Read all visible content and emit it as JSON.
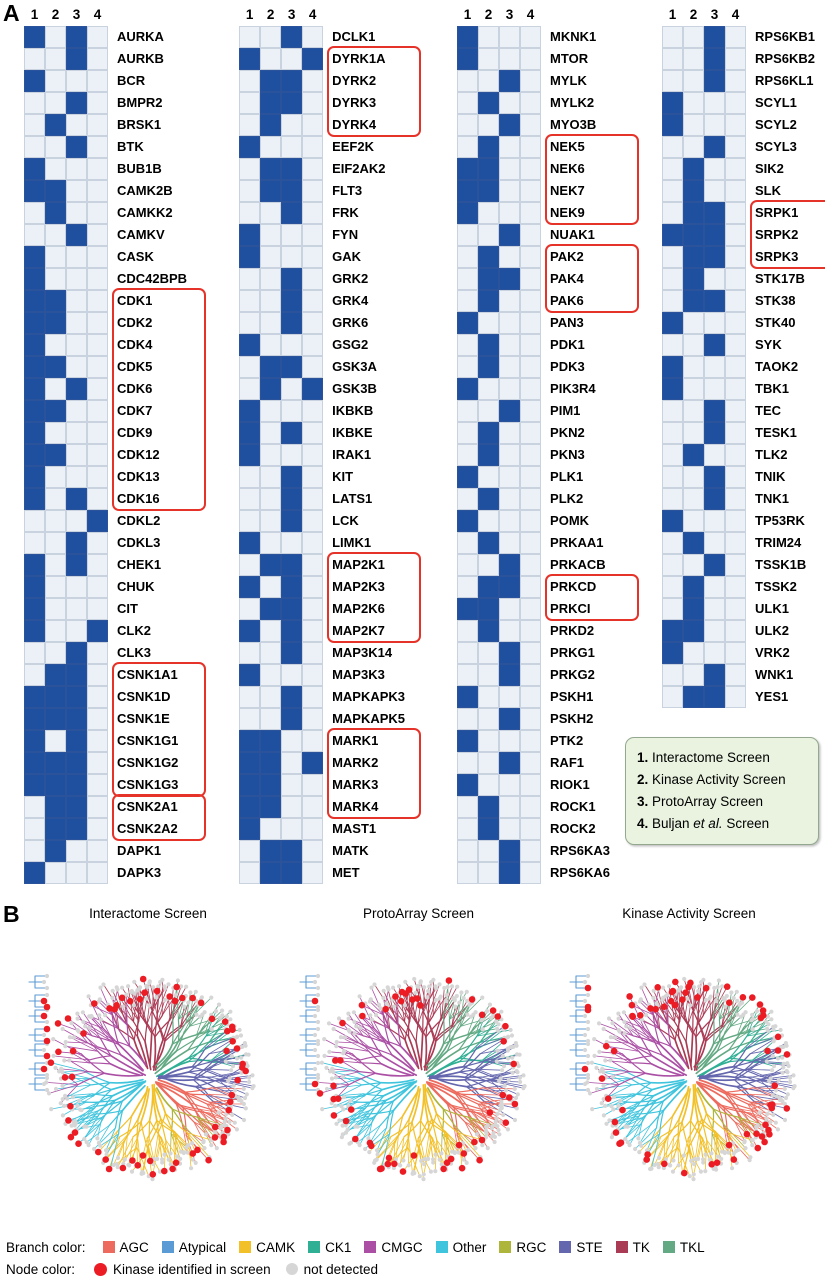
{
  "panel_a": {
    "label": "A",
    "col_headers": [
      "1",
      "2",
      "3",
      "4"
    ],
    "groups": [
      {
        "rows": [
          [
            "AURKA",
            1,
            0,
            1,
            0
          ],
          [
            "AURKB",
            0,
            0,
            1,
            0
          ],
          [
            "BCR",
            1,
            0,
            0,
            0
          ],
          [
            "BMPR2",
            0,
            0,
            1,
            0
          ],
          [
            "BRSK1",
            0,
            1,
            0,
            0
          ],
          [
            "BTK",
            0,
            0,
            1,
            0
          ],
          [
            "BUB1B",
            1,
            0,
            0,
            0
          ],
          [
            "CAMK2B",
            1,
            1,
            0,
            0
          ],
          [
            "CAMKK2",
            0,
            1,
            0,
            0
          ],
          [
            "CAMKV",
            0,
            0,
            1,
            0
          ],
          [
            "CASK",
            1,
            0,
            0,
            0
          ],
          [
            "CDC42BPB",
            1,
            0,
            0,
            0
          ],
          [
            "CDK1",
            1,
            1,
            0,
            0
          ],
          [
            "CDK2",
            1,
            1,
            0,
            0
          ],
          [
            "CDK4",
            1,
            0,
            0,
            0
          ],
          [
            "CDK5",
            1,
            1,
            0,
            0
          ],
          [
            "CDK6",
            1,
            0,
            1,
            0
          ],
          [
            "CDK7",
            1,
            1,
            0,
            0
          ],
          [
            "CDK9",
            1,
            0,
            0,
            0
          ],
          [
            "CDK12",
            1,
            1,
            0,
            0
          ],
          [
            "CDK13",
            1,
            0,
            0,
            0
          ],
          [
            "CDK16",
            1,
            0,
            1,
            0
          ],
          [
            "CDKL2",
            0,
            0,
            0,
            1
          ],
          [
            "CDKL3",
            0,
            0,
            1,
            0
          ],
          [
            "CHEK1",
            1,
            0,
            1,
            0
          ],
          [
            "CHUK",
            1,
            0,
            0,
            0
          ],
          [
            "CIT",
            1,
            0,
            0,
            0
          ],
          [
            "CLK2",
            1,
            0,
            0,
            1
          ],
          [
            "CLK3",
            0,
            0,
            1,
            0
          ],
          [
            "CSNK1A1",
            0,
            1,
            1,
            0
          ],
          [
            "CSNK1D",
            1,
            1,
            1,
            0
          ],
          [
            "CSNK1E",
            1,
            1,
            1,
            0
          ],
          [
            "CSNK1G1",
            1,
            0,
            1,
            0
          ],
          [
            "CSNK1G2",
            1,
            1,
            1,
            0
          ],
          [
            "CSNK1G3",
            1,
            1,
            1,
            0
          ],
          [
            "CSNK2A1",
            0,
            1,
            1,
            0
          ],
          [
            "CSNK2A2",
            0,
            1,
            1,
            0
          ],
          [
            "DAPK1",
            0,
            1,
            0,
            0
          ],
          [
            "DAPK3",
            1,
            0,
            0,
            0
          ]
        ],
        "boxes": [
          [
            "CDK1",
            "CDK16"
          ],
          [
            "CSNK1A1",
            "CSNK1G3"
          ],
          [
            "CSNK2A1",
            "CSNK2A2"
          ]
        ]
      },
      {
        "rows": [
          [
            "DCLK1",
            0,
            0,
            1,
            0
          ],
          [
            "DYRK1A",
            1,
            0,
            0,
            1
          ],
          [
            "DYRK2",
            0,
            1,
            1,
            0
          ],
          [
            "DYRK3",
            0,
            1,
            1,
            0
          ],
          [
            "DYRK4",
            0,
            1,
            0,
            0
          ],
          [
            "EEF2K",
            1,
            0,
            0,
            0
          ],
          [
            "EIF2AK2",
            0,
            1,
            1,
            0
          ],
          [
            "FLT3",
            0,
            1,
            1,
            0
          ],
          [
            "FRK",
            0,
            0,
            1,
            0
          ],
          [
            "FYN",
            1,
            0,
            0,
            0
          ],
          [
            "GAK",
            1,
            0,
            0,
            0
          ],
          [
            "GRK2",
            0,
            0,
            1,
            0
          ],
          [
            "GRK4",
            0,
            0,
            1,
            0
          ],
          [
            "GRK6",
            0,
            0,
            1,
            0
          ],
          [
            "GSG2",
            1,
            0,
            0,
            0
          ],
          [
            "GSK3A",
            0,
            1,
            1,
            0
          ],
          [
            "GSK3B",
            0,
            1,
            0,
            1
          ],
          [
            "IKBKB",
            1,
            0,
            0,
            0
          ],
          [
            "IKBKE",
            1,
            0,
            1,
            0
          ],
          [
            "IRAK1",
            1,
            0,
            0,
            0
          ],
          [
            "KIT",
            0,
            0,
            1,
            0
          ],
          [
            "LATS1",
            0,
            0,
            1,
            0
          ],
          [
            "LCK",
            0,
            0,
            1,
            0
          ],
          [
            "LIMK1",
            1,
            0,
            0,
            0
          ],
          [
            "MAP2K1",
            0,
            1,
            1,
            0
          ],
          [
            "MAP2K3",
            1,
            0,
            1,
            0
          ],
          [
            "MAP2K6",
            0,
            1,
            1,
            0
          ],
          [
            "MAP2K7",
            1,
            0,
            1,
            0
          ],
          [
            "MAP3K14",
            0,
            0,
            1,
            0
          ],
          [
            "MAP3K3",
            1,
            0,
            0,
            0
          ],
          [
            "MAPKAPK3",
            0,
            0,
            1,
            0
          ],
          [
            "MAPKAPK5",
            0,
            0,
            1,
            0
          ],
          [
            "MARK1",
            1,
            1,
            0,
            0
          ],
          [
            "MARK2",
            1,
            1,
            0,
            1
          ],
          [
            "MARK3",
            1,
            1,
            0,
            0
          ],
          [
            "MARK4",
            1,
            1,
            0,
            0
          ],
          [
            "MAST1",
            1,
            0,
            0,
            0
          ],
          [
            "MATK",
            0,
            1,
            1,
            0
          ],
          [
            "MET",
            0,
            1,
            1,
            0
          ]
        ],
        "boxes": [
          [
            "DYRK1A",
            "DYRK4"
          ],
          [
            "MAP2K1",
            "MAP2K7"
          ],
          [
            "MARK1",
            "MARK4"
          ]
        ]
      },
      {
        "rows": [
          [
            "MKNK1",
            1,
            0,
            0,
            0
          ],
          [
            "MTOR",
            1,
            0,
            0,
            0
          ],
          [
            "MYLK",
            0,
            0,
            1,
            0
          ],
          [
            "MYLK2",
            0,
            1,
            0,
            0
          ],
          [
            "MYO3B",
            0,
            0,
            1,
            0
          ],
          [
            "NEK5",
            0,
            1,
            0,
            0
          ],
          [
            "NEK6",
            1,
            1,
            0,
            0
          ],
          [
            "NEK7",
            1,
            1,
            0,
            0
          ],
          [
            "NEK9",
            1,
            0,
            0,
            0
          ],
          [
            "NUAK1",
            0,
            0,
            1,
            0
          ],
          [
            "PAK2",
            0,
            1,
            0,
            0
          ],
          [
            "PAK4",
            0,
            1,
            1,
            0
          ],
          [
            "PAK6",
            0,
            1,
            0,
            0
          ],
          [
            "PAN3",
            1,
            0,
            0,
            0
          ],
          [
            "PDK1",
            0,
            1,
            0,
            0
          ],
          [
            "PDK3",
            0,
            1,
            0,
            0
          ],
          [
            "PIK3R4",
            1,
            0,
            0,
            0
          ],
          [
            "PIM1",
            0,
            0,
            1,
            0
          ],
          [
            "PKN2",
            0,
            1,
            0,
            0
          ],
          [
            "PKN3",
            0,
            1,
            0,
            0
          ],
          [
            "PLK1",
            1,
            0,
            0,
            0
          ],
          [
            "PLK2",
            0,
            1,
            0,
            0
          ],
          [
            "POMK",
            1,
            0,
            0,
            0
          ],
          [
            "PRKAA1",
            0,
            1,
            0,
            0
          ],
          [
            "PRKACB",
            0,
            0,
            1,
            0
          ],
          [
            "PRKCD",
            0,
            1,
            1,
            0
          ],
          [
            "PRKCI",
            1,
            1,
            0,
            0
          ],
          [
            "PRKD2",
            0,
            1,
            0,
            0
          ],
          [
            "PRKG1",
            0,
            0,
            1,
            0
          ],
          [
            "PRKG2",
            0,
            0,
            1,
            0
          ],
          [
            "PSKH1",
            1,
            0,
            0,
            0
          ],
          [
            "PSKH2",
            0,
            0,
            1,
            0
          ],
          [
            "PTK2",
            1,
            0,
            0,
            0
          ],
          [
            "RAF1",
            0,
            0,
            1,
            0
          ],
          [
            "RIOK1",
            1,
            0,
            0,
            0
          ],
          [
            "ROCK1",
            0,
            1,
            0,
            0
          ],
          [
            "ROCK2",
            0,
            1,
            0,
            0
          ],
          [
            "RPS6KA3",
            0,
            0,
            1,
            0
          ],
          [
            "RPS6KA6",
            0,
            0,
            1,
            0
          ]
        ],
        "boxes": [
          [
            "NEK5",
            "NEK9"
          ],
          [
            "PAK2",
            "PAK6"
          ],
          [
            "PRKCD",
            "PRKCI"
          ]
        ]
      },
      {
        "rows": [
          [
            "RPS6KB1",
            0,
            0,
            1,
            0
          ],
          [
            "RPS6KB2",
            0,
            0,
            1,
            0
          ],
          [
            "RPS6KL1",
            0,
            0,
            1,
            0
          ],
          [
            "SCYL1",
            1,
            0,
            0,
            0
          ],
          [
            "SCYL2",
            1,
            0,
            0,
            0
          ],
          [
            "SCYL3",
            0,
            0,
            1,
            0
          ],
          [
            "SIK2",
            0,
            1,
            0,
            0
          ],
          [
            "SLK",
            0,
            1,
            0,
            0
          ],
          [
            "SRPK1",
            0,
            1,
            1,
            0
          ],
          [
            "SRPK2",
            1,
            1,
            1,
            0
          ],
          [
            "SRPK3",
            0,
            1,
            1,
            0
          ],
          [
            "STK17B",
            0,
            1,
            0,
            0
          ],
          [
            "STK38",
            0,
            1,
            1,
            0
          ],
          [
            "STK40",
            1,
            0,
            0,
            0
          ],
          [
            "SYK",
            0,
            0,
            1,
            0
          ],
          [
            "TAOK2",
            1,
            0,
            0,
            0
          ],
          [
            "TBK1",
            1,
            0,
            0,
            0
          ],
          [
            "TEC",
            0,
            0,
            1,
            0
          ],
          [
            "TESK1",
            0,
            0,
            1,
            0
          ],
          [
            "TLK2",
            0,
            1,
            0,
            0
          ],
          [
            "TNIK",
            0,
            0,
            1,
            0
          ],
          [
            "TNK1",
            0,
            0,
            1,
            0
          ],
          [
            "TP53RK",
            1,
            0,
            0,
            0
          ],
          [
            "TRIM24",
            0,
            1,
            0,
            0
          ],
          [
            "TSSK1B",
            0,
            0,
            1,
            0
          ],
          [
            "TSSK2",
            0,
            1,
            0,
            0
          ],
          [
            "ULK1",
            0,
            1,
            0,
            0
          ],
          [
            "ULK2",
            1,
            1,
            0,
            0
          ],
          [
            "VRK2",
            1,
            0,
            0,
            0
          ],
          [
            "WNK1",
            0,
            0,
            1,
            0
          ],
          [
            "YES1",
            0,
            1,
            1,
            0
          ]
        ],
        "boxes": [
          [
            "SRPK1",
            "SRPK3"
          ]
        ]
      }
    ],
    "screen_legend": {
      "items": [
        {
          "num": "1.",
          "pre": "Interactome Screen",
          "italic": "",
          "post": ""
        },
        {
          "num": "2.",
          "pre": "Kinase Activity Screen",
          "italic": "",
          "post": ""
        },
        {
          "num": "3.",
          "pre": "ProtoArray Screen",
          "italic": "",
          "post": ""
        },
        {
          "num": "4.",
          "pre": "Buljan ",
          "italic": "et al.",
          "post": " Screen"
        }
      ]
    }
  },
  "panel_b": {
    "label": "B",
    "screens": [
      {
        "title": "Interactome Screen"
      },
      {
        "title": "ProtoArray Screen"
      },
      {
        "title": "Kinase Activity Screen"
      }
    ],
    "branch_legend": {
      "title": "Branch color:",
      "items": [
        {
          "name": "AGC",
          "color": "#ed6a5e"
        },
        {
          "name": "Atypical",
          "color": "#5b9bd5"
        },
        {
          "name": "CAMK",
          "color": "#f2c029"
        },
        {
          "name": "CK1",
          "color": "#2faf94"
        },
        {
          "name": "CMGC",
          "color": "#ab4fa5"
        },
        {
          "name": "Other",
          "color": "#3fc4dd"
        },
        {
          "name": "RGC",
          "color": "#adb53b"
        },
        {
          "name": "STE",
          "color": "#6466ae"
        },
        {
          "name": "TK",
          "color": "#aa3b55"
        },
        {
          "name": "TKL",
          "color": "#63a983"
        }
      ]
    },
    "node_legend": {
      "title": "Node color:",
      "items": [
        {
          "label": "Kinase identified in screen",
          "color": "#ec1c24"
        },
        {
          "label": "not detected",
          "color": "#d6d6d6"
        }
      ]
    }
  },
  "colors": {
    "cell_filled": "#1f4f9f",
    "cell_empty": "#ecf1f8",
    "cell_border": "#c9d3df",
    "red_box": "#e5332a",
    "legend_bg": "#e9f3df"
  }
}
